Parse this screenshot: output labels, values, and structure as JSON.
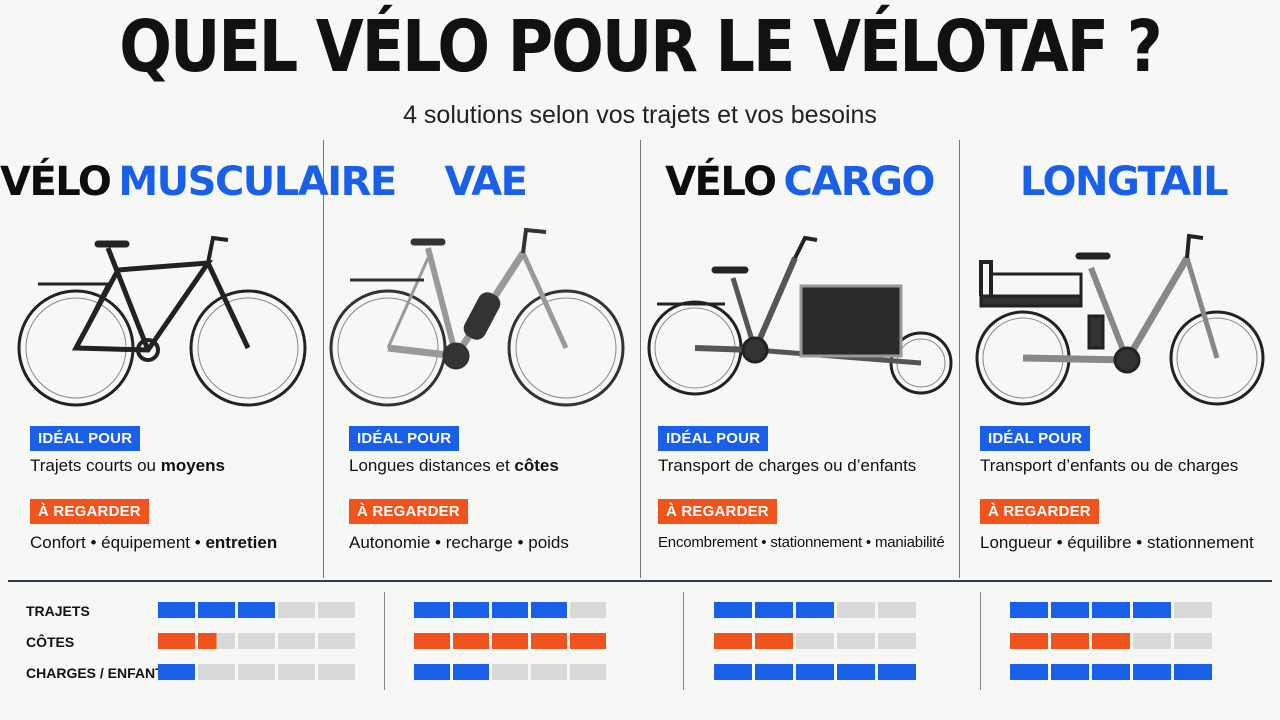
{
  "title": "QUEL VÉLO POUR LE VÉLOTAF ?",
  "subtitle": "4 solutions selon vos trajets et vos besoins",
  "colors": {
    "blue": "#1a5fe8",
    "orange": "#f0541c",
    "empty": "#d9d9d9"
  },
  "ideal_label": "IDÉAL POUR",
  "watch_label": "À REGARDER",
  "columns": [
    {
      "head_black": "VÉLO",
      "head_blue": "MUSCULAIRE",
      "ideal_a": "Trajets courts ou ",
      "ideal_b": "moyens",
      "w1": "Confort",
      "w2": "équipement",
      "w3": "entretien"
    },
    {
      "head_black": "",
      "head_blue": "VAE",
      "ideal_a": "Longues distances et ",
      "ideal_b": "côtes",
      "w1": "Autonomie",
      "w2": "recharge",
      "w3": "poids"
    },
    {
      "head_black": "VÉLO",
      "head_blue": "CARGO",
      "ideal_a": "Transport de charges ou d’enfants",
      "ideal_b": "",
      "w1": "Encombrement",
      "w2": "stationnement",
      "w3": "maniabilité"
    },
    {
      "head_black": "",
      "head_blue": "LONGTAIL",
      "ideal_a": "Transport d’enfants ou de charges",
      "ideal_b": "",
      "w1": "Longueur",
      "w2": "équilibre",
      "w3": "stationnement"
    }
  ],
  "bullet": "•",
  "ratings": {
    "labels": [
      "TRAJETS",
      "CÔTES",
      "CHARGES / ENFANTS"
    ],
    "max": 5,
    "values": [
      [
        3,
        1.5,
        1
      ],
      [
        4,
        5,
        2
      ],
      [
        3,
        2,
        5
      ],
      [
        4,
        3,
        5
      ]
    ]
  }
}
